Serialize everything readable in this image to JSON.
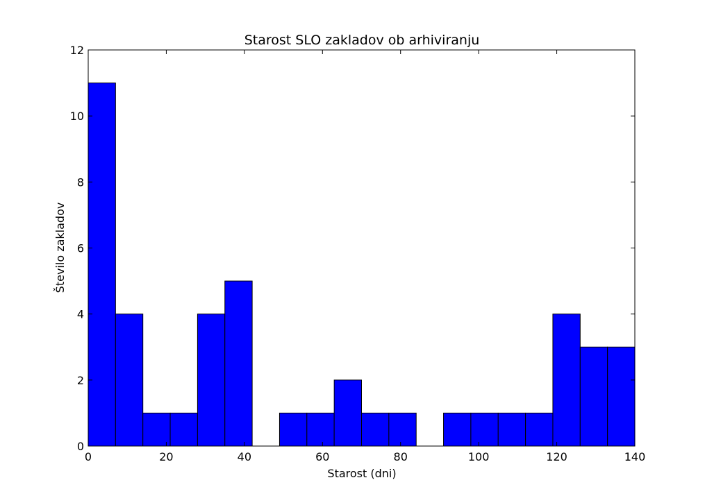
{
  "chart_data": {
    "type": "bar",
    "title": "Starost SLO zakladov ob arhiviranju",
    "xlabel": "Starost (dni)",
    "ylabel": "Število zakladov",
    "xlim": [
      0,
      140
    ],
    "ylim": [
      0,
      12
    ],
    "x_ticks": [
      "0",
      "20",
      "40",
      "60",
      "80",
      "100",
      "120",
      "140"
    ],
    "y_ticks": [
      "0",
      "2",
      "4",
      "6",
      "8",
      "10",
      "12"
    ],
    "bin_edges": [
      0,
      7,
      14,
      21,
      28,
      35,
      42,
      49,
      56,
      63,
      70,
      77,
      84,
      91,
      98,
      105,
      112,
      119,
      126,
      133,
      140
    ],
    "values": [
      11,
      4,
      1,
      1,
      4,
      5,
      0,
      1,
      1,
      2,
      1,
      1,
      0,
      1,
      1,
      1,
      1,
      4,
      3,
      3
    ],
    "bar_color": "#0000ff",
    "grid": false
  }
}
